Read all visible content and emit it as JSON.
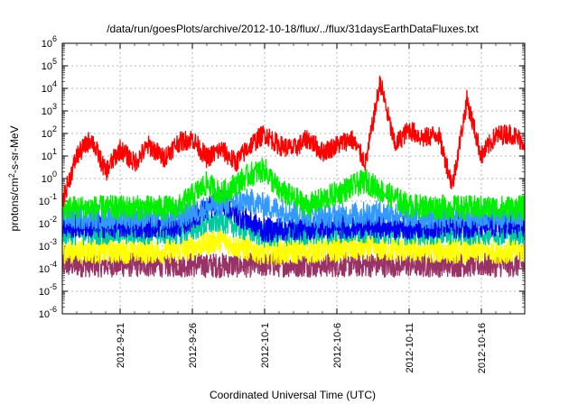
{
  "chart_data": {
    "type": "line",
    "title": "/data/run/goesPlots/archive/2012-10-18/flux/../flux/31daysEarthDataFluxes.txt",
    "xlabel": "Coordinated Universal Time (UTC)",
    "ylabel": "protons/cm²-s-sr-MeV",
    "yscale": "log",
    "ylim": [
      1e-06,
      1000000.0
    ],
    "xlim": [
      "2012-09-17",
      "2012-10-19"
    ],
    "grid": true,
    "legend": "none",
    "y_ticks": [
      {
        "value": 1e-06,
        "base": "10",
        "exp": "-6"
      },
      {
        "value": 1e-05,
        "base": "10",
        "exp": "-5"
      },
      {
        "value": 0.0001,
        "base": "10",
        "exp": "-4"
      },
      {
        "value": 0.001,
        "base": "10",
        "exp": "-3"
      },
      {
        "value": 0.01,
        "base": "10",
        "exp": "-2"
      },
      {
        "value": 0.1,
        "base": "10",
        "exp": "-1"
      },
      {
        "value": 1,
        "base": "10",
        "exp": "0"
      },
      {
        "value": 10,
        "base": "10",
        "exp": "1"
      },
      {
        "value": 100,
        "base": "10",
        "exp": "2"
      },
      {
        "value": 1000,
        "base": "10",
        "exp": "3"
      },
      {
        "value": 10000,
        "base": "10",
        "exp": "4"
      },
      {
        "value": 100000,
        "base": "10",
        "exp": "5"
      },
      {
        "value": 1000000,
        "base": "10",
        "exp": "6"
      }
    ],
    "x_ticks": [
      "2012-9-21",
      "2012-9-26",
      "2012-10-1",
      "2012-10-6",
      "2012-10-11",
      "2012-10-16"
    ],
    "series": [
      {
        "color": "#993366",
        "points": [
          [
            "2012-09-17",
            0.00015
          ],
          [
            "2012-09-21",
            0.00015
          ],
          [
            "2012-09-25",
            0.00015
          ],
          [
            "2012-09-28",
            0.00014
          ],
          [
            "2012-10-01",
            0.00015
          ],
          [
            "2012-10-05",
            0.00015
          ],
          [
            "2012-10-09",
            0.00015
          ],
          [
            "2012-10-13",
            0.00015
          ],
          [
            "2012-10-16",
            0.00015
          ],
          [
            "2012-10-19",
            0.00015
          ]
        ]
      },
      {
        "color": "#ffff00",
        "points": [
          [
            "2012-09-17",
            0.0006
          ],
          [
            "2012-09-21",
            0.0006
          ],
          [
            "2012-09-25",
            0.0006
          ],
          [
            "2012-09-28",
            0.002
          ],
          [
            "2012-09-29",
            0.001
          ],
          [
            "2012-10-01",
            0.0005
          ],
          [
            "2012-10-04",
            0.0006
          ],
          [
            "2012-10-08",
            0.0008
          ],
          [
            "2012-10-10",
            0.0007
          ],
          [
            "2012-10-14",
            0.0006
          ],
          [
            "2012-10-19",
            0.0006
          ]
        ]
      },
      {
        "color": "#00c8a0",
        "points": [
          [
            "2012-09-17",
            0.004
          ],
          [
            "2012-09-21",
            0.004
          ],
          [
            "2012-09-25",
            0.004
          ],
          [
            "2012-09-28",
            0.015
          ],
          [
            "2012-09-29",
            0.008
          ],
          [
            "2012-10-01",
            0.003
          ],
          [
            "2012-10-04",
            0.004
          ],
          [
            "2012-10-08",
            0.005
          ],
          [
            "2012-10-10",
            0.004
          ],
          [
            "2012-10-14",
            0.004
          ],
          [
            "2012-10-19",
            0.004
          ]
        ]
      },
      {
        "color": "#0000ee",
        "points": [
          [
            "2012-09-17",
            0.008
          ],
          [
            "2012-09-21",
            0.008
          ],
          [
            "2012-09-25",
            0.008
          ],
          [
            "2012-09-28",
            0.1
          ],
          [
            "2012-09-29",
            0.03
          ],
          [
            "2012-10-01",
            0.005
          ],
          [
            "2012-10-04",
            0.007
          ],
          [
            "2012-10-08",
            0.008
          ],
          [
            "2012-10-10",
            0.007
          ],
          [
            "2012-10-14",
            0.008
          ],
          [
            "2012-10-19",
            0.008
          ]
        ]
      },
      {
        "color": "#3399ff",
        "points": [
          [
            "2012-09-17",
            0.02
          ],
          [
            "2012-09-21",
            0.02
          ],
          [
            "2012-09-25",
            0.02
          ],
          [
            "2012-09-28",
            0.08
          ],
          [
            "2012-09-30",
            0.1
          ],
          [
            "2012-10-02",
            0.04
          ],
          [
            "2012-10-05",
            0.02
          ],
          [
            "2012-10-09",
            0.03
          ],
          [
            "2012-10-12",
            0.02
          ],
          [
            "2012-10-16",
            0.02
          ],
          [
            "2012-10-19",
            0.02
          ]
        ]
      },
      {
        "color": "#00ee00",
        "points": [
          [
            "2012-09-17",
            0.05
          ],
          [
            "2012-09-21",
            0.05
          ],
          [
            "2012-09-25",
            0.05
          ],
          [
            "2012-09-27",
            0.6
          ],
          [
            "2012-09-28",
            0.2
          ],
          [
            "2012-09-30",
            1.5
          ],
          [
            "2012-10-01",
            2.5
          ],
          [
            "2012-10-02",
            0.3
          ],
          [
            "2012-10-04",
            0.06
          ],
          [
            "2012-10-08",
            0.8
          ],
          [
            "2012-10-09",
            0.3
          ],
          [
            "2012-10-11",
            0.06
          ],
          [
            "2012-10-15",
            0.05
          ],
          [
            "2012-10-19",
            0.05
          ]
        ]
      },
      {
        "color": "#ff0000",
        "points": [
          [
            "2012-09-17",
            0.1
          ],
          [
            "2012-09-18",
            10
          ],
          [
            "2012-09-19",
            60
          ],
          [
            "2012-09-20",
            2
          ],
          [
            "2012-09-21",
            20
          ],
          [
            "2012-09-22",
            5
          ],
          [
            "2012-09-23",
            30
          ],
          [
            "2012-09-24",
            8
          ],
          [
            "2012-09-25",
            40
          ],
          [
            "2012-09-26",
            60
          ],
          [
            "2012-09-27",
            8
          ],
          [
            "2012-09-28",
            20
          ],
          [
            "2012-09-29",
            5
          ],
          [
            "2012-09-30",
            30
          ],
          [
            "2012-10-01",
            100
          ],
          [
            "2012-10-02",
            30
          ],
          [
            "2012-10-03",
            20
          ],
          [
            "2012-10-04",
            60
          ],
          [
            "2012-10-05",
            15
          ],
          [
            "2012-10-06",
            30
          ],
          [
            "2012-10-07",
            60
          ],
          [
            "2012-10-08",
            5
          ],
          [
            "2012-10-09",
            20000
          ],
          [
            "2012-10-10",
            30
          ],
          [
            "2012-10-11",
            150
          ],
          [
            "2012-10-12",
            60
          ],
          [
            "2012-10-13",
            100
          ],
          [
            "2012-10-14",
            0.5
          ],
          [
            "2012-10-15",
            3000
          ],
          [
            "2012-10-16",
            10
          ],
          [
            "2012-10-17",
            80
          ],
          [
            "2012-10-18",
            100
          ],
          [
            "2012-10-19",
            40
          ]
        ]
      }
    ]
  }
}
